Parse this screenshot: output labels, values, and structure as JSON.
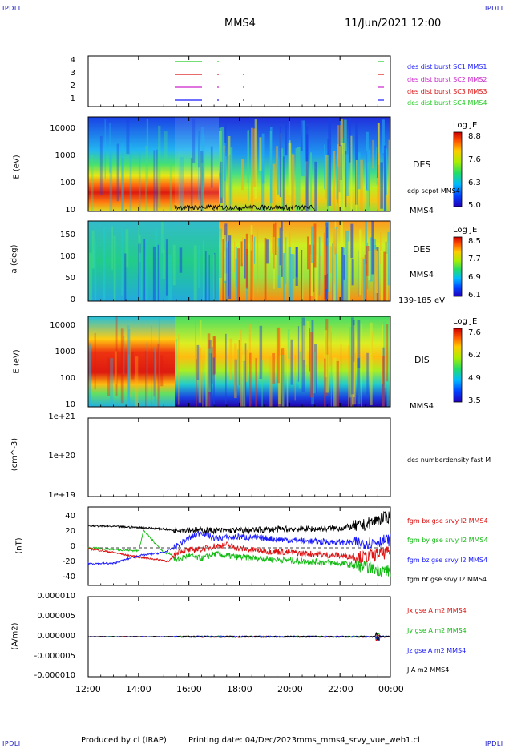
{
  "header": {
    "corner_labels": [
      "IPDLI",
      "IPDLI",
      "IPDLI",
      "IPDLI"
    ],
    "spacecraft": "MMS4",
    "datetime": "11/Jun/2021 12:00"
  },
  "footer": {
    "produced_by": "Produced by cl (IRAP)",
    "printing_date": "Printing date: 04/Dec/2023",
    "config_name": "mms_mms4_srvy_vue_web1.cl"
  },
  "time_axis": {
    "ticks": [
      "12:00",
      "14:00",
      "16:00",
      "18:00",
      "20:00",
      "22:00",
      "00:00"
    ],
    "range_hours": [
      0,
      12
    ]
  },
  "panels": {
    "burst": {
      "yticks": [
        "4",
        "3",
        "2",
        "1"
      ],
      "legend": [
        {
          "text": "des dist burst SC1 MMS1",
          "color": "#1a1aff"
        },
        {
          "text": "des dist burst SC2 MMS2",
          "color": "#cc22cc"
        },
        {
          "text": "des dist burst SC3 MMS3",
          "color": "#dd1111"
        },
        {
          "text": "des dist burst SC4 MMS4",
          "color": "#22cc22"
        }
      ]
    },
    "des_energy": {
      "ylabel": "E (eV)",
      "yticks": [
        "10000",
        "1000",
        "100",
        "10"
      ],
      "species": "DES",
      "overlay_label": "edp scpot MMS4",
      "sc_label": "MMS4",
      "colorbar": {
        "title": "Log JE",
        "ticks": [
          "8.8",
          "7.6",
          "6.3",
          "5.0"
        ]
      }
    },
    "des_pitch": {
      "ylabel": "a (deg)",
      "yticks": [
        "150",
        "100",
        "50",
        "0"
      ],
      "species": "DES",
      "sc_label": "MMS4",
      "energy_range": "139-185 eV",
      "colorbar": {
        "title": "Log JE",
        "ticks": [
          "8.5",
          "7.7",
          "6.9",
          "6.1"
        ]
      }
    },
    "dis_energy": {
      "ylabel": "E (eV)",
      "yticks": [
        "10000",
        "1000",
        "100",
        "10"
      ],
      "species": "DIS",
      "sc_label": "MMS4",
      "colorbar": {
        "title": "Log JE",
        "ticks": [
          "7.6",
          "6.2",
          "4.9",
          "3.5"
        ]
      }
    },
    "density": {
      "ylabel": "(cm^-3)",
      "yticks": [
        "1e+21",
        "1e+20",
        "1e+19"
      ],
      "legend": "des numberdensity fast M"
    },
    "bfield": {
      "ylabel": "(nT)",
      "yticks": [
        "40",
        "20",
        "0",
        "-20",
        "-40"
      ],
      "legend": [
        {
          "text": "fgm bx gse srvy l2 MMS4",
          "color": "#dd1111"
        },
        {
          "text": "fgm by gse srvy l2 MMS4",
          "color": "#11bb11"
        },
        {
          "text": "fgm bz gse srvy l2 MMS4",
          "color": "#1a1aff"
        },
        {
          "text": "fgm bt gse srvy l2 MMS4",
          "color": "#000000"
        }
      ]
    },
    "current": {
      "ylabel": "(A/m2)",
      "yticks": [
        "0.000010",
        "0.000005",
        "0.000000",
        "-0.000005",
        "-0.000010"
      ],
      "legend": [
        {
          "text": "Jx gse A m2 MMS4",
          "color": "#dd1111"
        },
        {
          "text": "Jy gse A m2 MMS4",
          "color": "#11bb11"
        },
        {
          "text": "Jz gse A m2 MMS4",
          "color": "#1a1aff"
        },
        {
          "text": "J A m2 MMS4",
          "color": "#000000"
        }
      ]
    }
  },
  "chart_data": [
    {
      "type": "line",
      "title": "",
      "ylabel": "(nT)",
      "x_unit": "hours after 12:00",
      "ylim": [
        -50,
        50
      ],
      "series": [
        {
          "name": "fgm bx gse srvy l2 MMS4",
          "color": "#dd1111",
          "x": [
            0,
            1,
            2,
            3,
            3.2,
            3.4,
            3.6,
            4,
            4.5,
            5,
            5.5,
            6,
            7,
            8,
            9,
            10,
            11,
            11.5,
            12
          ],
          "y": [
            -3,
            -8,
            -14,
            -18,
            -20,
            -12,
            -6,
            -5,
            -4,
            0,
            2,
            -3,
            -6,
            -8,
            -10,
            -12,
            -14,
            -10,
            -8
          ]
        },
        {
          "name": "fgm by gse srvy l2 MMS4",
          "color": "#11bb11",
          "x": [
            0,
            1,
            2,
            2.2,
            3,
            3.3,
            3.5,
            4,
            4.5,
            5,
            6,
            7,
            8,
            9,
            10,
            11,
            11.5,
            12
          ],
          "y": [
            -2,
            -4,
            -6,
            20,
            -8,
            -10,
            -18,
            -12,
            -16,
            -10,
            -14,
            -16,
            -18,
            -20,
            -22,
            -26,
            -30,
            -32
          ]
        },
        {
          "name": "fgm bz gse srvy l2 MMS4",
          "color": "#1a1aff",
          "x": [
            0,
            1,
            2,
            3,
            3.4,
            3.6,
            4,
            4.5,
            5,
            6,
            7,
            8,
            9,
            10,
            11,
            11.5,
            12
          ],
          "y": [
            -22,
            -22,
            -12,
            -8,
            -2,
            2,
            10,
            18,
            10,
            12,
            10,
            8,
            6,
            5,
            4,
            6,
            8
          ]
        },
        {
          "name": "fgm bt gse srvy l2 MMS4",
          "color": "#000000",
          "x": [
            0,
            1,
            2,
            3,
            3.4,
            3.6,
            4,
            5,
            6,
            7,
            8,
            9,
            10,
            11,
            11.5,
            12
          ],
          "y": [
            26,
            25,
            24,
            22,
            20,
            22,
            21,
            20,
            20,
            21,
            22,
            22,
            23,
            27,
            34,
            38
          ]
        }
      ]
    },
    {
      "type": "line",
      "title": "",
      "ylabel": "(A/m2)",
      "x_unit": "hours after 12:00",
      "ylim": [
        -1e-05,
        1e-05
      ],
      "series": [
        {
          "name": "Jx gse A m2 MMS4",
          "color": "#dd1111",
          "x": [
            0,
            12
          ],
          "y": [
            0,
            0
          ]
        },
        {
          "name": "Jy gse A m2 MMS4",
          "color": "#11bb11",
          "x": [
            0,
            12
          ],
          "y": [
            0,
            0
          ]
        },
        {
          "name": "Jz gse A m2 MMS4",
          "color": "#1a1aff",
          "x": [
            0,
            12
          ],
          "y": [
            0,
            0
          ]
        },
        {
          "name": "J A m2 MMS4",
          "color": "#000000",
          "x": [
            0,
            12
          ],
          "y": [
            0,
            0
          ]
        }
      ]
    }
  ]
}
